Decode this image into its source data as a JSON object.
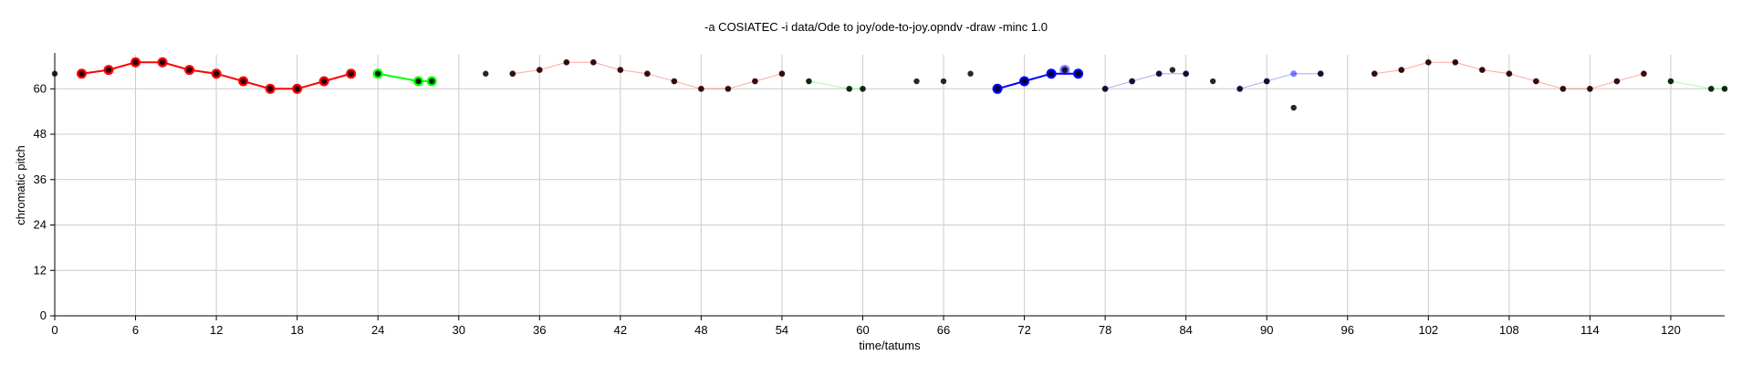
{
  "chart_data": {
    "type": "scatter",
    "title": "-a COSIATEC -i data/Ode to joy/ode-to-joy.opndv -draw -minc 1.0",
    "xlabel": "time/tatums",
    "ylabel": "chromatic pitch",
    "xlim": [
      0,
      124
    ],
    "ylim": [
      0,
      69
    ],
    "xticks": [
      "0",
      "6",
      "12",
      "18",
      "24",
      "30",
      "36",
      "42",
      "48",
      "54",
      "60",
      "66",
      "72",
      "78",
      "84",
      "90",
      "96",
      "102",
      "108",
      "114",
      "120"
    ],
    "yticks": [
      "0",
      "12",
      "24",
      "36",
      "48",
      "60"
    ],
    "grid": true,
    "base_points": {
      "color": "#000000",
      "points": [
        [
          0,
          64
        ],
        [
          2,
          64
        ],
        [
          4,
          65
        ],
        [
          6,
          67
        ],
        [
          8,
          67
        ],
        [
          10,
          65
        ],
        [
          12,
          64
        ],
        [
          14,
          62
        ],
        [
          16,
          60
        ],
        [
          18,
          60
        ],
        [
          20,
          62
        ],
        [
          22,
          64
        ],
        [
          24,
          64
        ],
        [
          27,
          62
        ],
        [
          28,
          62
        ],
        [
          32,
          64
        ],
        [
          34,
          64
        ],
        [
          36,
          65
        ],
        [
          38,
          67
        ],
        [
          40,
          67
        ],
        [
          42,
          65
        ],
        [
          44,
          64
        ],
        [
          46,
          62
        ],
        [
          48,
          60
        ],
        [
          50,
          60
        ],
        [
          52,
          62
        ],
        [
          54,
          64
        ],
        [
          56,
          62
        ],
        [
          59,
          60
        ],
        [
          60,
          60
        ],
        [
          64,
          62
        ],
        [
          66,
          62
        ],
        [
          68,
          64
        ],
        [
          70,
          60
        ],
        [
          72,
          62
        ],
        [
          74,
          64
        ],
        [
          75,
          65
        ],
        [
          76,
          64
        ],
        [
          78,
          60
        ],
        [
          80,
          62
        ],
        [
          82,
          64
        ],
        [
          83,
          65
        ],
        [
          84,
          64
        ],
        [
          86,
          62
        ],
        [
          88,
          60
        ],
        [
          90,
          62
        ],
        [
          92,
          55
        ],
        [
          94,
          64
        ],
        [
          98,
          64
        ],
        [
          100,
          65
        ],
        [
          102,
          67
        ],
        [
          104,
          67
        ],
        [
          106,
          65
        ],
        [
          108,
          64
        ],
        [
          110,
          62
        ],
        [
          112,
          60
        ],
        [
          114,
          60
        ],
        [
          116,
          62
        ],
        [
          118,
          64
        ],
        [
          120,
          62
        ],
        [
          123,
          60
        ],
        [
          124,
          60
        ]
      ]
    },
    "series": [
      {
        "color": "#ff0000",
        "pattern": [
          [
            0,
            64
          ],
          [
            2,
            65
          ],
          [
            4,
            67
          ],
          [
            6,
            67
          ],
          [
            8,
            65
          ],
          [
            10,
            64
          ],
          [
            12,
            62
          ],
          [
            14,
            60
          ],
          [
            16,
            60
          ],
          [
            18,
            62
          ],
          [
            20,
            64
          ]
        ],
        "translators": [
          [
            2,
            0
          ],
          [
            34,
            0
          ],
          [
            98,
            0
          ]
        ]
      },
      {
        "color": "#00ff00",
        "pattern": [
          [
            0,
            64
          ],
          [
            3,
            62
          ],
          [
            4,
            62
          ]
        ],
        "translators": [
          [
            24,
            0
          ],
          [
            56,
            -2
          ],
          [
            120,
            -2
          ]
        ]
      },
      {
        "color": "#0000ff",
        "pattern": [
          [
            0,
            60
          ],
          [
            2,
            62
          ],
          [
            4,
            64
          ],
          [
            6,
            64
          ]
        ],
        "translators": [
          [
            70,
            0
          ],
          [
            78,
            0
          ],
          [
            88,
            0
          ]
        ],
        "extra": [
          [
            75,
            65
          ]
        ]
      }
    ]
  }
}
